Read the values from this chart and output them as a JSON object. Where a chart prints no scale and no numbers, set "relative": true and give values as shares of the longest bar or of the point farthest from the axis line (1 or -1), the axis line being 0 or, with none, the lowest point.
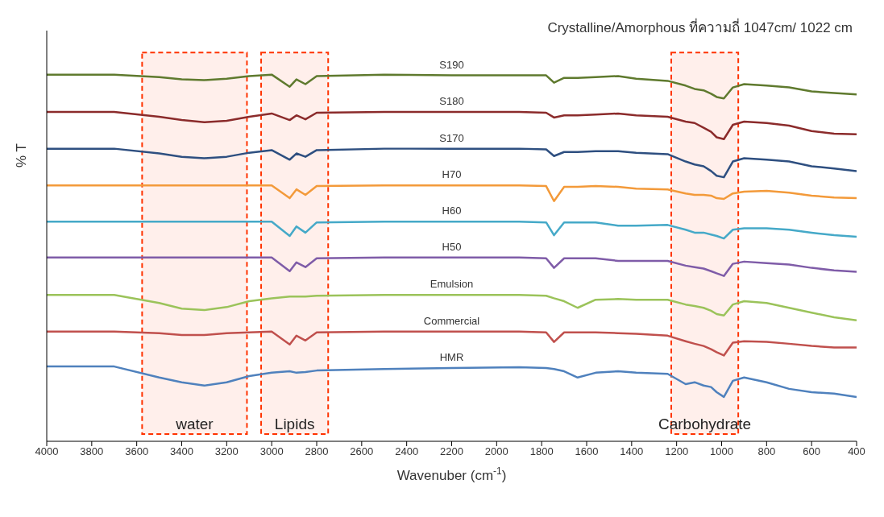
{
  "chart_data": {
    "type": "line",
    "relative": true,
    "xlabel": "Wavenuber (cm$^{-1}$)",
    "ylabel": "% T",
    "legend": false,
    "grid": false,
    "marker": "none",
    "line_style": "solid",
    "annotations": [
      "Crystalline/Amorphous ที่ความถี่ 1047cm/ 1022 cm"
    ],
    "xlim": [
      4000,
      400
    ],
    "xticks": [
      4000,
      3800,
      3600,
      3400,
      3200,
      3000,
      2800,
      2600,
      2400,
      2200,
      2000,
      1800,
      1600,
      1400,
      1200,
      1000,
      800,
      600,
      400
    ],
    "x": [
      4000,
      3700,
      3500,
      3400,
      3300,
      3200,
      3100,
      3000,
      2920,
      2890,
      2850,
      2800,
      2500,
      2200,
      1900,
      1780,
      1745,
      1700,
      1640,
      1560,
      1460,
      1380,
      1240,
      1160,
      1120,
      1080,
      1047,
      1022,
      990,
      950,
      900,
      800,
      700,
      600,
      500,
      400
    ],
    "bands": [
      {
        "axis": "x",
        "from": 3576,
        "to": 3110,
        "label": "water",
        "color": "#ff3300"
      },
      {
        "axis": "x",
        "from": 3047,
        "to": 2749,
        "label": "Lipids",
        "color": "#ff3300"
      },
      {
        "axis": "x",
        "from": 1224,
        "to": 926,
        "label": "Carbohydrate",
        "color": "#ff3300"
      }
    ],
    "series": [
      {
        "name": "S190",
        "color": "#5f7a2e",
        "values": [
          1,
          1,
          0.993,
          0.987,
          0.985,
          0.989,
          0.996,
          1,
          0.967,
          0.987,
          0.974,
          0.996,
          1,
          0.998,
          0.998,
          0.998,
          0.978,
          0.991,
          0.991,
          0.993,
          0.996,
          0.989,
          0.983,
          0.97,
          0.961,
          0.957,
          0.948,
          0.939,
          0.935,
          0.965,
          0.974,
          0.97,
          0.965,
          0.954,
          0.95,
          0.946
        ]
      },
      {
        "name": "S180",
        "color": "#8b2b2b",
        "values": [
          0.898,
          0.898,
          0.885,
          0.876,
          0.87,
          0.874,
          0.885,
          0.894,
          0.876,
          0.889,
          0.878,
          0.896,
          0.898,
          0.898,
          0.898,
          0.896,
          0.883,
          0.889,
          0.889,
          0.891,
          0.894,
          0.889,
          0.885,
          0.872,
          0.868,
          0.855,
          0.844,
          0.829,
          0.824,
          0.863,
          0.872,
          0.868,
          0.861,
          0.846,
          0.839,
          0.837
        ]
      },
      {
        "name": "S170",
        "color": "#2e4f80",
        "values": [
          0.798,
          0.798,
          0.785,
          0.776,
          0.772,
          0.776,
          0.787,
          0.794,
          0.768,
          0.785,
          0.776,
          0.794,
          0.798,
          0.798,
          0.798,
          0.796,
          0.778,
          0.789,
          0.789,
          0.791,
          0.791,
          0.787,
          0.783,
          0.763,
          0.755,
          0.75,
          0.737,
          0.724,
          0.72,
          0.763,
          0.772,
          0.768,
          0.763,
          0.75,
          0.744,
          0.737
        ]
      },
      {
        "name": "H70",
        "color": "#f39a3a",
        "values": [
          0.698,
          0.698,
          0.698,
          0.698,
          0.698,
          0.698,
          0.698,
          0.698,
          0.663,
          0.687,
          0.672,
          0.696,
          0.698,
          0.698,
          0.698,
          0.696,
          0.655,
          0.694,
          0.694,
          0.696,
          0.694,
          0.689,
          0.687,
          0.676,
          0.672,
          0.672,
          0.67,
          0.663,
          0.661,
          0.676,
          0.681,
          0.683,
          0.678,
          0.67,
          0.665,
          0.663
        ]
      },
      {
        "name": "H60",
        "color": "#45a9c8",
        "values": [
          0.599,
          0.599,
          0.599,
          0.599,
          0.599,
          0.599,
          0.599,
          0.599,
          0.56,
          0.586,
          0.569,
          0.597,
          0.599,
          0.599,
          0.599,
          0.597,
          0.562,
          0.597,
          0.597,
          0.597,
          0.588,
          0.588,
          0.59,
          0.577,
          0.569,
          0.569,
          0.564,
          0.56,
          0.553,
          0.577,
          0.581,
          0.581,
          0.577,
          0.569,
          0.562,
          0.558
        ]
      },
      {
        "name": "H50",
        "color": "#7f5ca8",
        "values": [
          0.501,
          0.501,
          0.501,
          0.501,
          0.501,
          0.501,
          0.501,
          0.501,
          0.464,
          0.488,
          0.475,
          0.499,
          0.501,
          0.501,
          0.501,
          0.499,
          0.473,
          0.499,
          0.499,
          0.499,
          0.492,
          0.492,
          0.492,
          0.479,
          0.475,
          0.471,
          0.464,
          0.458,
          0.451,
          0.484,
          0.49,
          0.486,
          0.482,
          0.473,
          0.466,
          0.462
        ]
      },
      {
        "name": "Emulsion",
        "color": "#9bc35a",
        "values": [
          0.399,
          0.399,
          0.377,
          0.362,
          0.358,
          0.366,
          0.382,
          0.39,
          0.395,
          0.395,
          0.395,
          0.397,
          0.399,
          0.399,
          0.399,
          0.397,
          0.39,
          0.382,
          0.364,
          0.386,
          0.388,
          0.386,
          0.386,
          0.373,
          0.369,
          0.364,
          0.356,
          0.347,
          0.343,
          0.373,
          0.382,
          0.377,
          0.364,
          0.351,
          0.338,
          0.33
        ]
      },
      {
        "name": "Commercial",
        "color": "#c0504d",
        "values": [
          0.299,
          0.299,
          0.295,
          0.29,
          0.29,
          0.295,
          0.297,
          0.299,
          0.264,
          0.288,
          0.275,
          0.297,
          0.299,
          0.299,
          0.299,
          0.297,
          0.271,
          0.297,
          0.297,
          0.297,
          0.295,
          0.293,
          0.288,
          0.273,
          0.266,
          0.26,
          0.251,
          0.243,
          0.234,
          0.269,
          0.273,
          0.271,
          0.266,
          0.26,
          0.256,
          0.256
        ]
      },
      {
        "name": "HMR",
        "color": "#4f81bd",
        "values": [
          0.204,
          0.204,
          0.174,
          0.161,
          0.152,
          0.161,
          0.178,
          0.187,
          0.191,
          0.187,
          0.189,
          0.193,
          0.197,
          0.2,
          0.202,
          0.2,
          0.197,
          0.191,
          0.174,
          0.187,
          0.191,
          0.187,
          0.184,
          0.156,
          0.161,
          0.152,
          0.148,
          0.134,
          0.121,
          0.165,
          0.174,
          0.161,
          0.143,
          0.134,
          0.13,
          0.121
        ]
      }
    ]
  }
}
